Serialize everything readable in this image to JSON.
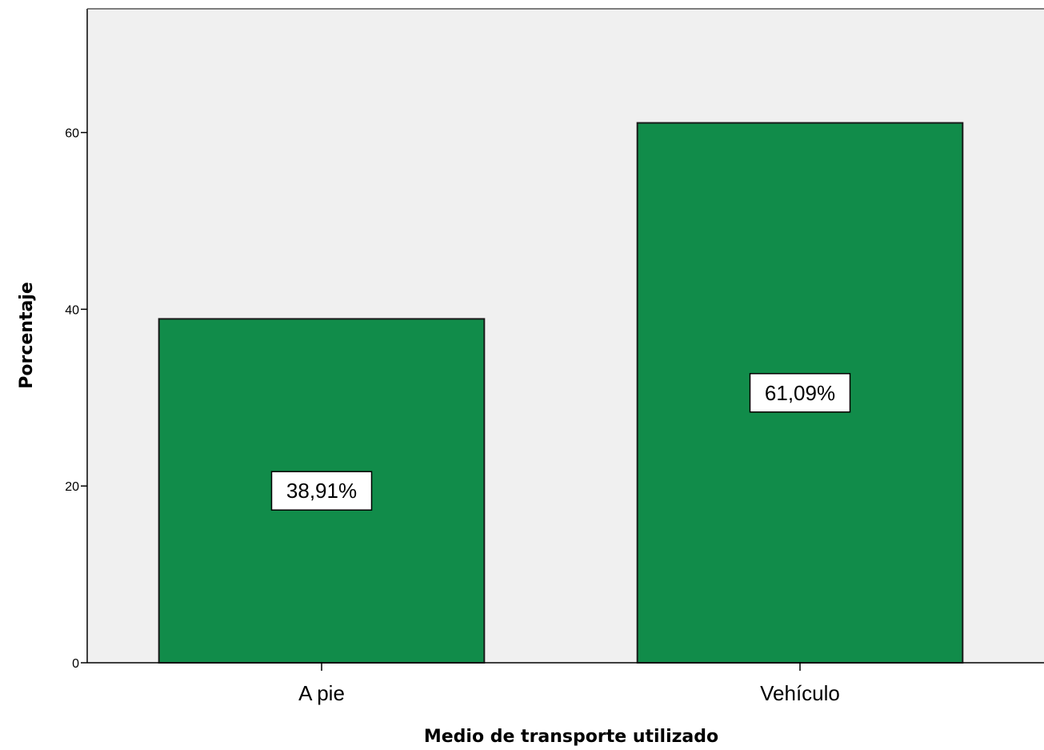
{
  "chart_data": {
    "type": "bar",
    "categories": [
      "A pie",
      "Vehículo"
    ],
    "values": [
      38.91,
      61.09
    ],
    "data_labels": [
      "38,91%",
      "61,09%"
    ],
    "xlabel": "Medio de transporte utilizado",
    "ylabel": "Porcentaje",
    "ylim": [
      0,
      74
    ],
    "yticks": [
      0,
      20,
      40,
      60
    ],
    "ytick_labels": [
      "0",
      "20",
      "40",
      "60"
    ],
    "grid": false,
    "legend": "none",
    "colors": {
      "bar_fill": "#118c4a",
      "bar_stroke": "#1a1a1a",
      "plot_background": "#f0f0f0",
      "axis": "#000000",
      "label_box": "#ffffff"
    }
  }
}
